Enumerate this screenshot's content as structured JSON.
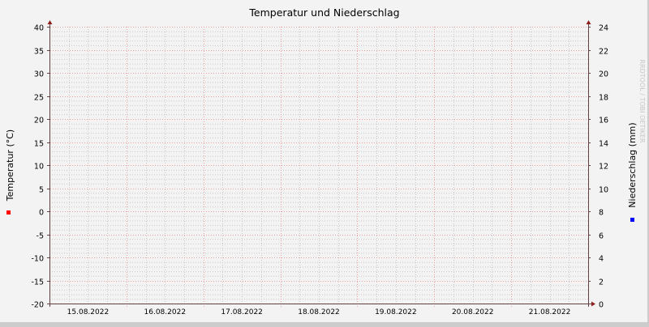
{
  "chart_data": {
    "type": "line",
    "title": "Temperatur und Niederschlag",
    "ylabel": "Temperatur (°C)",
    "y2label": "Niederschlag (mm)",
    "ylim": [
      -20,
      40
    ],
    "y_ticks": [
      40,
      35,
      30,
      25,
      20,
      15,
      10,
      5,
      0,
      -5,
      -10,
      -15,
      -20
    ],
    "y2lim": [
      0,
      24
    ],
    "y2_ticks": [
      24,
      22,
      20,
      18,
      16,
      14,
      12,
      10,
      8,
      6,
      4,
      2,
      0
    ],
    "x_ticks": [
      "15.08.2022",
      "16.08.2022",
      "17.08.2022",
      "18.08.2022",
      "19.08.2022",
      "20.08.2022",
      "21.08.2022"
    ],
    "grid": true,
    "series": [],
    "legend": {
      "left_color": "#ff0000",
      "right_color": "#0000ff"
    },
    "watermark": "RRDTOOL / TOBI OETIKER"
  },
  "colors": {
    "background": "#f3f3f3",
    "major_grid": "#e8a0a0",
    "minor_grid": "#c8c8c8",
    "axis": "#604040",
    "arrow": "#902020"
  }
}
